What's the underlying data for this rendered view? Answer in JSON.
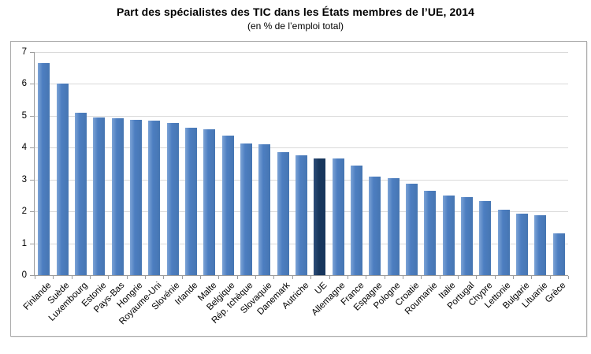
{
  "title": "Part des spécialistes des TIC dans les États membres de l’UE, 2014",
  "subtitle": "(en % de l’emploi total)",
  "chart_data": {
    "type": "bar",
    "title": "Part des spécialistes des TIC dans les États membres de l’UE, 2014",
    "subtitle": "(en % de l’emploi total)",
    "categories": [
      "Finlande",
      "Suède",
      "Luxembourg",
      "Estonie",
      "Pays-Bas",
      "Hongrie",
      "Royaume-Uni",
      "Slovénie",
      "Irlande",
      "Malte",
      "Belgique",
      "Rép. tchèque",
      "Slovaquie",
      "Danemark",
      "Autriche",
      "UE",
      "Allemagne",
      "France",
      "Espagne",
      "Pologne",
      "Croatie",
      "Roumanie",
      "Italie",
      "Portugal",
      "Chypre",
      "Lettonie",
      "Bulgarie",
      "Lituanie",
      "Grèce"
    ],
    "values": [
      6.65,
      6.0,
      5.1,
      4.95,
      4.93,
      4.87,
      4.85,
      4.77,
      4.62,
      4.58,
      4.38,
      4.12,
      4.1,
      3.85,
      3.75,
      3.67,
      3.65,
      3.45,
      3.09,
      3.05,
      2.86,
      2.65,
      2.5,
      2.45,
      2.33,
      2.05,
      1.93,
      1.87,
      1.3
    ],
    "highlight_category": "UE",
    "ylim": [
      0,
      7
    ],
    "ytick_labels": [
      "0",
      "1",
      "2",
      "3",
      "4",
      "5",
      "6",
      "7"
    ],
    "xlabel": "",
    "ylabel": "",
    "grid": true,
    "legend": "none",
    "colors": {
      "bar": "#4d7ec1",
      "bar_edge_light": "#7da4d6",
      "bar_edge_dark": "#4676b2",
      "bar_highlight": "#17365d",
      "bar_highlight_light": "#2d4d79",
      "gridline": "#d9d9d9",
      "axis": "#9b9b9b",
      "text": "#000000",
      "plot_border": "#ababab"
    }
  }
}
